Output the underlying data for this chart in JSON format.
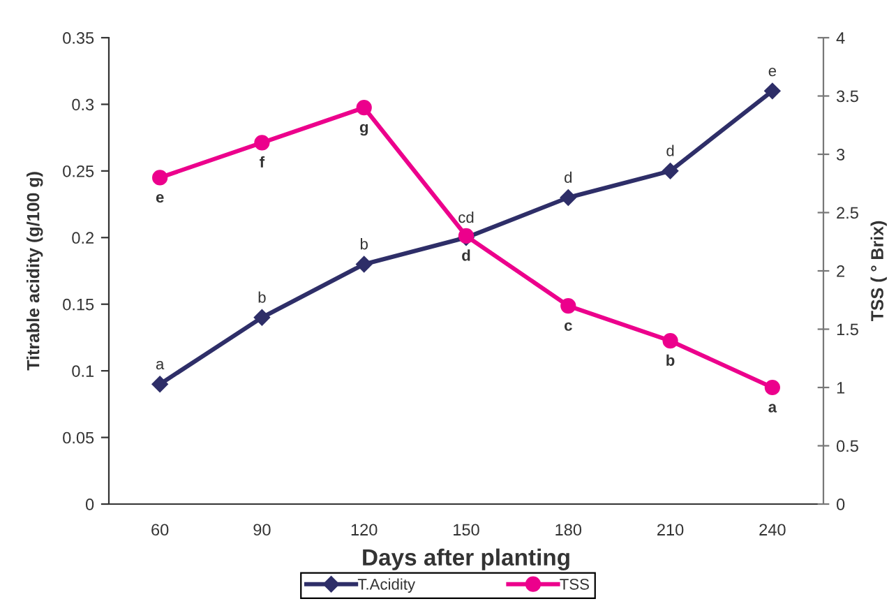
{
  "chart_data": {
    "type": "line",
    "xlabel": "Days after planting",
    "ylabel": "Titrable acidity (g/100 g)",
    "y2label": "TSS ( ° Brix)",
    "categories": [
      "60",
      "90",
      "120",
      "150",
      "180",
      "210",
      "240"
    ],
    "series": [
      {
        "name": "T.Acidity",
        "color": "#2e2e68",
        "marker": "diamond",
        "axis": "y",
        "values": [
          0.09,
          0.14,
          0.18,
          0.2,
          0.23,
          0.25,
          0.31
        ],
        "value_labels": [
          "a",
          "b",
          "b",
          "cd",
          "d",
          "d",
          "e"
        ]
      },
      {
        "name": "TSS",
        "color": "#ec008c",
        "marker": "circle",
        "axis": "y2",
        "values": [
          2.8,
          3.1,
          3.4,
          2.3,
          1.7,
          1.4,
          1.0
        ],
        "value_labels": [
          "e",
          "f",
          "g",
          "d",
          "c",
          "b",
          "a"
        ]
      }
    ],
    "ylim": [
      0,
      0.35
    ],
    "yticks": [
      0,
      0.05,
      0.1,
      0.15,
      0.2,
      0.25,
      0.3,
      0.35
    ],
    "y2lim": [
      0,
      4
    ],
    "y2ticks": [
      0,
      0.5,
      1,
      1.5,
      2,
      2.5,
      3,
      3.5,
      4
    ],
    "line_style": "solid",
    "grid": false,
    "legend": "bottom"
  }
}
